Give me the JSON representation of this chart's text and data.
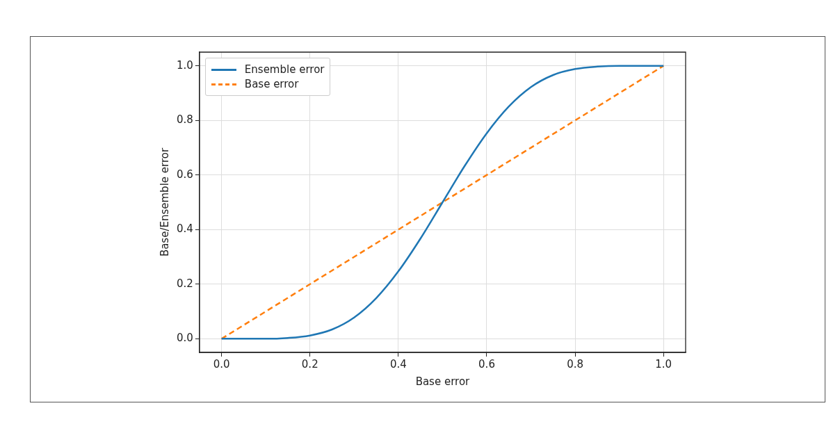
{
  "chart_data": {
    "type": "line",
    "xlabel": "Base error",
    "ylabel": "Base/Ensemble error",
    "x": [
      0,
      0.05,
      0.1,
      0.15,
      0.2,
      0.25,
      0.3,
      0.35,
      0.4,
      0.45,
      0.5,
      0.55,
      0.6,
      0.65,
      0.7,
      0.75,
      0.8,
      0.85,
      0.9,
      0.95,
      1
    ],
    "series": [
      {
        "name": "Ensemble error",
        "color": "#1f77b4",
        "line_style": "solid",
        "values": [
          0,
          0,
          0,
          0.003,
          0.012,
          0.034,
          0.078,
          0.149,
          0.247,
          0.367,
          0.5,
          0.633,
          0.753,
          0.851,
          0.922,
          0.966,
          0.988,
          0.997,
          1,
          1,
          1
        ]
      },
      {
        "name": "Base error",
        "color": "#ff7f0e",
        "line_style": "dashed",
        "x": [
          0,
          1
        ],
        "values": [
          0,
          1
        ]
      }
    ],
    "xlim": [
      -0.05,
      1.05
    ],
    "ylim": [
      -0.05,
      1.05
    ],
    "xticks": [
      {
        "value": 0,
        "label": "0.0"
      },
      {
        "value": 0.2,
        "label": "0.2"
      },
      {
        "value": 0.4,
        "label": "0.4"
      },
      {
        "value": 0.6,
        "label": "0.6"
      },
      {
        "value": 0.8,
        "label": "0.8"
      },
      {
        "value": 1,
        "label": "1.0"
      }
    ],
    "yticks": [
      {
        "value": 0,
        "label": "0.0"
      },
      {
        "value": 0.2,
        "label": "0.2"
      },
      {
        "value": 0.4,
        "label": "0.4"
      },
      {
        "value": 0.6,
        "label": "0.6"
      },
      {
        "value": 0.8,
        "label": "0.8"
      },
      {
        "value": 1,
        "label": "1.0"
      }
    ],
    "grid": true,
    "legend": "top left",
    "marker": "none"
  }
}
